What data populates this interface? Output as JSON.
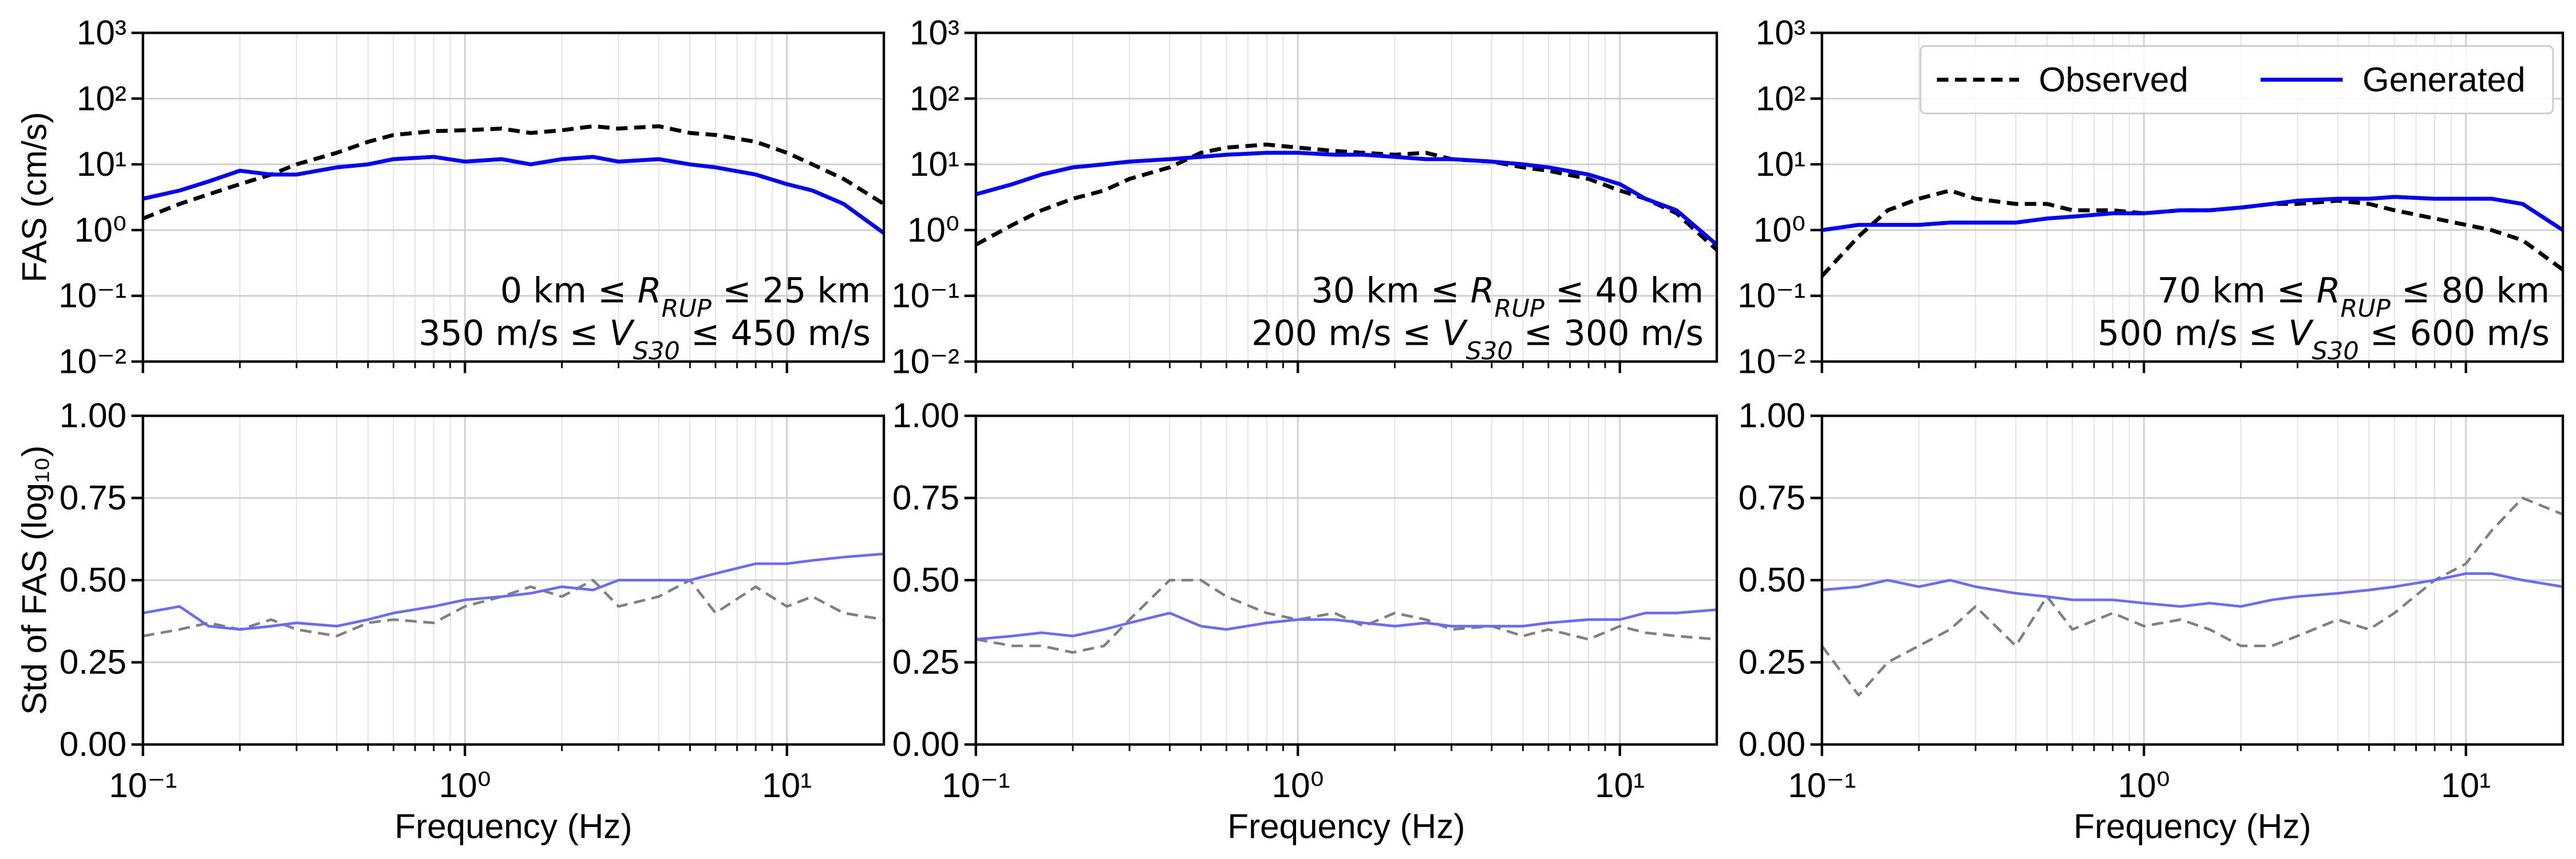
{
  "chart_data": [
    {
      "type": "line",
      "yscale": "log",
      "xscale": "log",
      "grid": true,
      "ylabel": "FAS (cm/s)",
      "annotation": [
        [
          "0 km ≤ ",
          "R",
          "RUP",
          " ≤ 25 km"
        ],
        [
          "350 m/s ≤ ",
          "V",
          "S30",
          " ≤ 450 m/s"
        ]
      ],
      "x": [
        0.1,
        0.13,
        0.16,
        0.2,
        0.25,
        0.3,
        0.4,
        0.5,
        0.6,
        0.8,
        1,
        1.3,
        1.6,
        2,
        2.5,
        3,
        4,
        5,
        6,
        8,
        10,
        12,
        15,
        20
      ],
      "xlim": [
        0.1,
        20
      ],
      "xticks": [
        0.1,
        1,
        10
      ],
      "xminorticks": [
        0.2,
        0.3,
        0.4,
        0.5,
        0.6,
        0.7,
        0.8,
        0.9,
        2,
        3,
        4,
        5,
        6,
        7,
        8,
        9
      ],
      "ylim": [
        0.01,
        1000
      ],
      "yticks": [
        {
          "value": 0.01,
          "label": "10⁻²"
        },
        {
          "value": 0.1,
          "label": "10⁻¹"
        },
        {
          "value": 1,
          "label": "10⁰"
        },
        {
          "value": 10,
          "label": "10¹"
        },
        {
          "value": 100,
          "label": "10²"
        },
        {
          "value": 1000,
          "label": "10³"
        }
      ],
      "series": [
        {
          "name": "Observed",
          "color": "#000000",
          "linestyle": "dashed",
          "values": [
            1.5,
            2.5,
            3.5,
            5,
            7,
            10,
            15,
            22,
            28,
            32,
            33,
            35,
            30,
            33,
            38,
            35,
            38,
            30,
            28,
            22,
            15,
            10,
            6,
            2.5
          ]
        },
        {
          "name": "Generated",
          "color": "#0000ff",
          "linestyle": "solid",
          "values": [
            3,
            4,
            5.5,
            8,
            7,
            7,
            9,
            10,
            12,
            13,
            11,
            12,
            10,
            12,
            13,
            11,
            12,
            10,
            9,
            7,
            5,
            4,
            2.5,
            0.9
          ]
        }
      ]
    },
    {
      "type": "line",
      "yscale": "log",
      "xscale": "log",
      "grid": true,
      "annotation": [
        [
          "30 km ≤ ",
          "R",
          "RUP",
          " ≤ 40 km"
        ],
        [
          "200 m/s ≤ ",
          "V",
          "S30",
          " ≤ 300 m/s"
        ]
      ],
      "x": [
        0.1,
        0.13,
        0.16,
        0.2,
        0.25,
        0.3,
        0.4,
        0.5,
        0.6,
        0.8,
        1,
        1.3,
        1.6,
        2,
        2.5,
        3,
        4,
        5,
        6,
        8,
        10,
        12,
        15,
        20
      ],
      "xlim": [
        0.1,
        20
      ],
      "xticks": [
        0.1,
        1,
        10
      ],
      "xminorticks": [
        0.2,
        0.3,
        0.4,
        0.5,
        0.6,
        0.7,
        0.8,
        0.9,
        2,
        3,
        4,
        5,
        6,
        7,
        8,
        9
      ],
      "ylim": [
        0.01,
        1000
      ],
      "yticks": [
        {
          "value": 0.01,
          "label": "10⁻²"
        },
        {
          "value": 0.1,
          "label": "10⁻¹"
        },
        {
          "value": 1,
          "label": "10⁰"
        },
        {
          "value": 10,
          "label": "10¹"
        },
        {
          "value": 100,
          "label": "10²"
        },
        {
          "value": 1000,
          "label": "10³"
        }
      ],
      "series": [
        {
          "name": "Observed",
          "color": "#000000",
          "linestyle": "dashed",
          "values": [
            0.6,
            1.2,
            2,
            3,
            4,
            6,
            9,
            15,
            18,
            20,
            18,
            16,
            15,
            14,
            15,
            12,
            11,
            9,
            8,
            6,
            4,
            3,
            1.8,
            0.5
          ]
        },
        {
          "name": "Generated",
          "color": "#0000ff",
          "linestyle": "solid",
          "values": [
            3.5,
            5,
            7,
            9,
            10,
            11,
            12,
            13,
            14,
            15,
            15,
            14,
            14,
            13,
            12,
            12,
            11,
            10,
            9,
            7,
            5,
            3,
            2,
            0.6
          ]
        }
      ]
    },
    {
      "type": "line",
      "yscale": "log",
      "xscale": "log",
      "grid": true,
      "legend": "upper right",
      "annotation": [
        [
          "70 km ≤ ",
          "R",
          "RUP",
          " ≤ 80 km"
        ],
        [
          "500 m/s ≤ ",
          "V",
          "S30",
          " ≤ 600 m/s"
        ]
      ],
      "x": [
        0.1,
        0.13,
        0.16,
        0.2,
        0.25,
        0.3,
        0.4,
        0.5,
        0.6,
        0.8,
        1,
        1.3,
        1.6,
        2,
        2.5,
        3,
        4,
        5,
        6,
        8,
        10,
        12,
        15,
        20
      ],
      "xlim": [
        0.1,
        20
      ],
      "xticks": [
        0.1,
        1,
        10
      ],
      "xminorticks": [
        0.2,
        0.3,
        0.4,
        0.5,
        0.6,
        0.7,
        0.8,
        0.9,
        2,
        3,
        4,
        5,
        6,
        7,
        8,
        9
      ],
      "ylim": [
        0.01,
        1000
      ],
      "yticks": [
        {
          "value": 0.01,
          "label": "10⁻²"
        },
        {
          "value": 0.1,
          "label": "10⁻¹"
        },
        {
          "value": 1,
          "label": "10⁰"
        },
        {
          "value": 10,
          "label": "10¹"
        },
        {
          "value": 100,
          "label": "10²"
        },
        {
          "value": 1000,
          "label": "10³"
        }
      ],
      "series": [
        {
          "name": "Observed",
          "color": "#000000",
          "linestyle": "dashed",
          "values": [
            0.2,
            0.8,
            2,
            3,
            4,
            3,
            2.5,
            2.5,
            2,
            2,
            1.8,
            2,
            2,
            2.2,
            2.5,
            2.5,
            2.8,
            2.5,
            2,
            1.5,
            1.2,
            1,
            0.7,
            0.25
          ]
        },
        {
          "name": "Generated",
          "color": "#0000ff",
          "linestyle": "solid",
          "values": [
            1,
            1.2,
            1.2,
            1.2,
            1.3,
            1.3,
            1.3,
            1.5,
            1.6,
            1.8,
            1.8,
            2,
            2,
            2.2,
            2.5,
            2.8,
            3,
            3,
            3.2,
            3,
            3,
            3,
            2.5,
            1
          ]
        }
      ]
    },
    {
      "type": "line",
      "xscale": "log",
      "grid": true,
      "ylabel": "Std of FAS (log₁₀)",
      "xlabel": "Frequency (Hz)",
      "x": [
        0.1,
        0.13,
        0.16,
        0.2,
        0.25,
        0.3,
        0.4,
        0.5,
        0.6,
        0.8,
        1,
        1.3,
        1.6,
        2,
        2.5,
        3,
        4,
        5,
        6,
        8,
        10,
        12,
        15,
        20
      ],
      "xlim": [
        0.1,
        20
      ],
      "xticks": [
        {
          "value": 0.1,
          "label": "10⁻¹"
        },
        {
          "value": 1,
          "label": "10⁰"
        },
        {
          "value": 10,
          "label": "10¹"
        }
      ],
      "xminorticks": [
        0.2,
        0.3,
        0.4,
        0.5,
        0.6,
        0.7,
        0.8,
        0.9,
        2,
        3,
        4,
        5,
        6,
        7,
        8,
        9
      ],
      "ylim": [
        0,
        1
      ],
      "yticks": [
        {
          "value": 0,
          "label": "0.00"
        },
        0.25,
        {
          "value": 0.5,
          "label": "0.50"
        },
        0.75,
        {
          "value": 1,
          "label": "1.00"
        }
      ],
      "series": [
        {
          "name": "Observed",
          "color": "#808080",
          "linestyle": "dashed",
          "values": [
            0.33,
            0.35,
            0.37,
            0.35,
            0.38,
            0.35,
            0.33,
            0.37,
            0.38,
            0.37,
            0.42,
            0.45,
            0.48,
            0.45,
            0.5,
            0.42,
            0.45,
            0.5,
            0.4,
            0.48,
            0.42,
            0.45,
            0.4,
            0.38
          ]
        },
        {
          "name": "Generated",
          "color": "#6a6aff",
          "linestyle": "solid",
          "values": [
            0.4,
            0.42,
            0.36,
            0.35,
            0.36,
            0.37,
            0.36,
            0.38,
            0.4,
            0.42,
            0.44,
            0.45,
            0.46,
            0.48,
            0.47,
            0.5,
            0.5,
            0.5,
            0.52,
            0.55,
            0.55,
            0.56,
            0.57,
            0.58
          ]
        }
      ]
    },
    {
      "type": "line",
      "xscale": "log",
      "grid": true,
      "xlabel": "Frequency (Hz)",
      "x": [
        0.1,
        0.13,
        0.16,
        0.2,
        0.25,
        0.3,
        0.4,
        0.5,
        0.6,
        0.8,
        1,
        1.3,
        1.6,
        2,
        2.5,
        3,
        4,
        5,
        6,
        8,
        10,
        12,
        15,
        20
      ],
      "xlim": [
        0.1,
        20
      ],
      "xticks": [
        {
          "value": 0.1,
          "label": "10⁻¹"
        },
        {
          "value": 1,
          "label": "10⁰"
        },
        {
          "value": 10,
          "label": "10¹"
        }
      ],
      "xminorticks": [
        0.2,
        0.3,
        0.4,
        0.5,
        0.6,
        0.7,
        0.8,
        0.9,
        2,
        3,
        4,
        5,
        6,
        7,
        8,
        9
      ],
      "ylim": [
        0,
        1
      ],
      "yticks": [
        {
          "value": 0,
          "label": "0.00"
        },
        0.25,
        {
          "value": 0.5,
          "label": "0.50"
        },
        0.75,
        {
          "value": 1,
          "label": "1.00"
        }
      ],
      "series": [
        {
          "name": "Observed",
          "color": "#808080",
          "linestyle": "dashed",
          "values": [
            0.32,
            0.3,
            0.3,
            0.28,
            0.3,
            0.38,
            0.5,
            0.5,
            0.45,
            0.4,
            0.38,
            0.4,
            0.36,
            0.4,
            0.38,
            0.35,
            0.36,
            0.33,
            0.35,
            0.32,
            0.36,
            0.34,
            0.33,
            0.32
          ]
        },
        {
          "name": "Generated",
          "color": "#6a6aff",
          "linestyle": "solid",
          "values": [
            0.32,
            0.33,
            0.34,
            0.33,
            0.35,
            0.37,
            0.4,
            0.36,
            0.35,
            0.37,
            0.38,
            0.38,
            0.37,
            0.36,
            0.37,
            0.36,
            0.36,
            0.36,
            0.37,
            0.38,
            0.38,
            0.4,
            0.4,
            0.41
          ]
        }
      ]
    },
    {
      "type": "line",
      "xscale": "log",
      "grid": true,
      "xlabel": "Frequency (Hz)",
      "x": [
        0.1,
        0.13,
        0.16,
        0.2,
        0.25,
        0.3,
        0.4,
        0.5,
        0.6,
        0.8,
        1,
        1.3,
        1.6,
        2,
        2.5,
        3,
        4,
        5,
        6,
        8,
        10,
        12,
        15,
        20
      ],
      "xlim": [
        0.1,
        20
      ],
      "xticks": [
        {
          "value": 0.1,
          "label": "10⁻¹"
        },
        {
          "value": 1,
          "label": "10⁰"
        },
        {
          "value": 10,
          "label": "10¹"
        }
      ],
      "xminorticks": [
        0.2,
        0.3,
        0.4,
        0.5,
        0.6,
        0.7,
        0.8,
        0.9,
        2,
        3,
        4,
        5,
        6,
        7,
        8,
        9
      ],
      "ylim": [
        0,
        1
      ],
      "yticks": [
        {
          "value": 0,
          "label": "0.00"
        },
        0.25,
        {
          "value": 0.5,
          "label": "0.50"
        },
        0.75,
        {
          "value": 1,
          "label": "1.00"
        }
      ],
      "series": [
        {
          "name": "Observed",
          "color": "#808080",
          "linestyle": "dashed",
          "values": [
            0.3,
            0.15,
            0.25,
            0.3,
            0.35,
            0.42,
            0.3,
            0.45,
            0.35,
            0.4,
            0.36,
            0.38,
            0.35,
            0.3,
            0.3,
            0.33,
            0.38,
            0.35,
            0.4,
            0.5,
            0.55,
            0.65,
            0.75,
            0.7
          ]
        },
        {
          "name": "Generated",
          "color": "#6a6aff",
          "linestyle": "solid",
          "values": [
            0.47,
            0.48,
            0.5,
            0.48,
            0.5,
            0.48,
            0.46,
            0.45,
            0.44,
            0.44,
            0.43,
            0.42,
            0.43,
            0.42,
            0.44,
            0.45,
            0.46,
            0.47,
            0.48,
            0.5,
            0.52,
            0.52,
            0.5,
            0.48
          ]
        }
      ]
    }
  ]
}
